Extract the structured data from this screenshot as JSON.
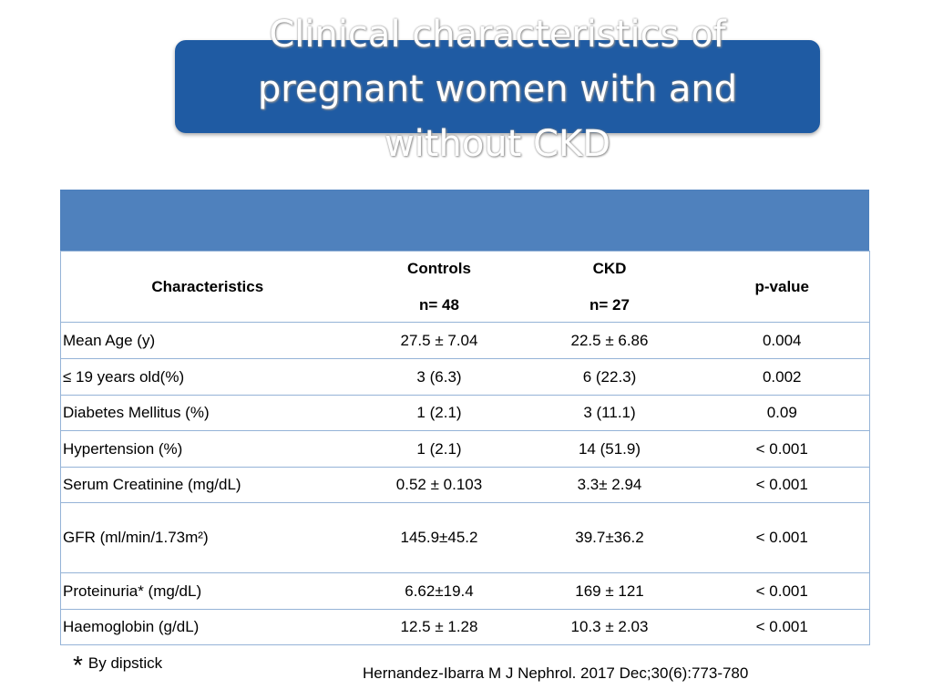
{
  "title": "Clinical characteristics of pregnant women with and without CKD",
  "table": {
    "header": {
      "characteristics": "Characteristics",
      "controls": "Controls",
      "controls_n": "n= 48",
      "ckd": "CKD",
      "ckd_n": "n= 27",
      "pvalue": "p-value"
    },
    "rows": [
      [
        "Mean Age (y)",
        "27.5 ± 7.04",
        "22.5 ± 6.86",
        "0.004"
      ],
      [
        "≤ 19 years old(%)",
        "3 (6.3)",
        "6 (22.3)",
        "0.002"
      ],
      [
        "Diabetes Mellitus (%)",
        "1 (2.1)",
        "3 (11.1)",
        "0.09"
      ],
      [
        "Hypertension (%)",
        "1 (2.1)",
        "14 (51.9)",
        "< 0.001"
      ],
      [
        "Serum Creatinine (mg/dL)",
        "0.52 ± 0.103",
        "3.3± 2.94",
        "< 0.001"
      ],
      [
        "GFR (ml/min/1.73m²)",
        "145.9±45.2",
        "39.7±36.2",
        "< 0.001"
      ],
      [
        "Proteinuria* (mg/dL)",
        "6.62±19.4",
        "169 ± 121",
        "< 0.001"
      ],
      [
        "Haemoglobin (g/dL)",
        "12.5 ± 1.28",
        "10.3 ± 2.03",
        "< 0.001"
      ]
    ]
  },
  "footnote": {
    "marker": "*",
    "text": "By dipstick"
  },
  "citation": "Hernandez-Ibarra M J Nephrol. 2017 Dec;30(6):773-780"
}
